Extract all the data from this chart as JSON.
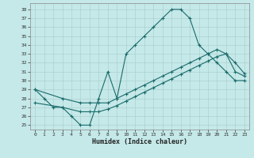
{
  "xlabel": "Humidex (Indice chaleur)",
  "bg_color": "#c5e8e8",
  "grid_color": "#a8cccc",
  "line_color": "#1a6b6b",
  "xlim_min": -0.5,
  "xlim_max": 23.5,
  "ylim_min": 24.5,
  "ylim_max": 38.7,
  "line1_x": [
    0,
    1,
    2,
    3,
    4,
    5,
    6,
    7,
    8,
    9,
    10,
    11,
    12,
    13,
    14,
    15,
    16,
    17,
    18,
    19,
    20,
    21,
    22,
    23
  ],
  "line1_y": [
    29,
    28,
    27,
    27,
    26,
    25,
    25,
    28,
    31,
    28,
    33,
    34,
    35,
    36,
    37,
    38,
    38,
    37,
    34,
    33,
    32,
    31,
    30,
    30
  ],
  "line2_x": [
    0,
    3,
    5,
    6,
    7,
    8,
    9,
    10,
    11,
    12,
    13,
    14,
    15,
    16,
    17,
    18,
    19,
    20,
    21,
    22,
    23
  ],
  "line2_y": [
    29,
    28,
    27.5,
    27.5,
    27.5,
    27.5,
    28,
    28.5,
    29,
    29.5,
    30,
    30.5,
    31,
    31.5,
    32,
    32.5,
    33,
    33.5,
    33,
    32,
    30.8
  ],
  "line3_x": [
    0,
    3,
    5,
    6,
    7,
    8,
    9,
    10,
    11,
    12,
    13,
    14,
    15,
    16,
    17,
    18,
    19,
    20,
    21,
    22,
    23
  ],
  "line3_y": [
    27.5,
    27,
    26.5,
    26.5,
    26.5,
    26.8,
    27.2,
    27.7,
    28.2,
    28.7,
    29.2,
    29.7,
    30.2,
    30.7,
    31.2,
    31.7,
    32.2,
    32.7,
    33,
    31,
    30.5
  ]
}
